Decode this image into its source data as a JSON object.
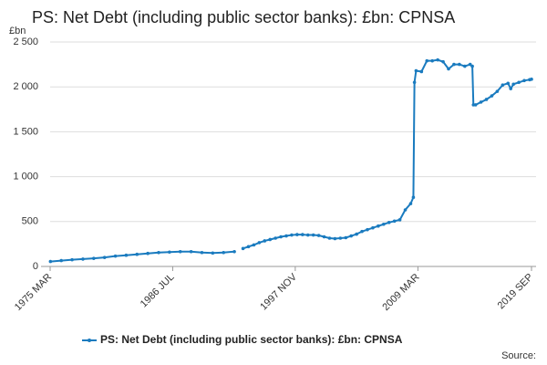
{
  "chart_data": {
    "type": "line",
    "title": "PS: Net Debt (including public sector banks): £bn: CPNSA",
    "y_label": "£bn",
    "source": "Source:",
    "x": [
      1975.2,
      1976.2,
      1977.2,
      1978.2,
      1979.2,
      1980.2,
      1981.2,
      1982.2,
      1983.2,
      1984.2,
      1985.2,
      1986.2,
      1987.2,
      1988.2,
      1989.2,
      1990.2,
      1991.2,
      1992.2,
      1992.7,
      1993.0,
      1993.5,
      1994.0,
      1994.5,
      1995.0,
      1995.5,
      1996.0,
      1996.5,
      1997.0,
      1997.5,
      1998.0,
      1998.5,
      1999.0,
      1999.5,
      2000.0,
      2000.5,
      2001.0,
      2001.5,
      2002.0,
      2002.5,
      2003.0,
      2003.5,
      2004.0,
      2004.5,
      2005.0,
      2005.5,
      2006.0,
      2006.5,
      2007.0,
      2007.5,
      2008.0,
      2008.5,
      2008.75,
      2008.85,
      2009.0,
      2009.5,
      2010.0,
      2010.5,
      2011.0,
      2011.5,
      2012.0,
      2012.5,
      2013.0,
      2013.5,
      2014.0,
      2014.2,
      2014.3,
      2014.5,
      2015.0,
      2015.5,
      2016.0,
      2016.5,
      2017.0,
      2017.5,
      2017.75,
      2018.0,
      2018.5,
      2019.0,
      2019.5,
      2019.67
    ],
    "series": [
      {
        "name": "PS: Net Debt (including public sector banks): £bn: CPNSA",
        "color": "#1a7bbf",
        "values": [
          55,
          65,
          75,
          82,
          90,
          100,
          115,
          125,
          135,
          145,
          155,
          160,
          165,
          165,
          155,
          150,
          155,
          165,
          null,
          200,
          220,
          240,
          265,
          285,
          300,
          315,
          330,
          340,
          350,
          355,
          355,
          350,
          350,
          345,
          330,
          315,
          310,
          315,
          320,
          340,
          360,
          390,
          410,
          430,
          450,
          470,
          490,
          505,
          520,
          630,
          700,
          770,
          2050,
          2180,
          2170,
          2290,
          2290,
          2300,
          2280,
          2200,
          2250,
          2250,
          2230,
          2250,
          2230,
          1800,
          1800,
          1830,
          1860,
          1900,
          1950,
          2020,
          2040,
          1980,
          2030,
          2050,
          2070,
          2080,
          2085
        ]
      }
    ],
    "xlim": [
      1975.17,
      2019.67
    ],
    "xticks": [
      {
        "value": 1975.17,
        "label": "1975 MAR"
      },
      {
        "value": 1986.5,
        "label": "1986 JUL"
      },
      {
        "value": 1997.83,
        "label": "1997 NOV"
      },
      {
        "value": 2009.17,
        "label": "2009 MAR"
      },
      {
        "value": 2019.67,
        "label": "2019 SEP"
      }
    ],
    "ylim": [
      0,
      2500
    ],
    "yticks": [
      0,
      500,
      {
        "value": 1000,
        "label": "1 000"
      },
      {
        "value": 1500,
        "label": "1 500"
      },
      {
        "value": 2000,
        "label": "2 000"
      },
      {
        "value": 2500,
        "label": "2 500"
      }
    ],
    "grid": true
  }
}
